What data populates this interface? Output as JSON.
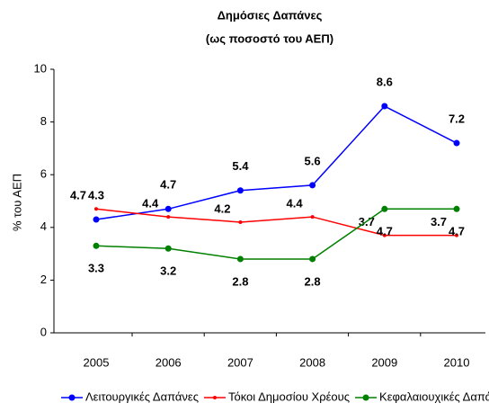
{
  "chart_data": {
    "type": "line",
    "title": "Δημόσιες Δαπάνες",
    "subtitle": "(ως ποσοστό του ΑΕΠ)",
    "y_label": "% του ΑΕΠ",
    "categories": [
      "2005",
      "2006",
      "2007",
      "2008",
      "2009",
      "2010"
    ],
    "series": [
      {
        "name": "Λειτουργικές Δαπάνες",
        "color": "#0000ff",
        "values": [
          4.3,
          4.7,
          5.4,
          5.6,
          8.6,
          7.2
        ]
      },
      {
        "name": "Τόκοι Δημοσίου Χρέους",
        "color": "#ff0000",
        "values": [
          4.7,
          4.4,
          4.2,
          4.4,
          3.7,
          3.7
        ]
      },
      {
        "name": "Κεφαλαιουχικές Δαπάνες",
        "color": "#008000",
        "values": [
          3.3,
          3.2,
          2.8,
          2.8,
          4.7,
          4.7
        ]
      }
    ],
    "ylim": [
      0,
      10
    ],
    "yticks": [
      0,
      2,
      4,
      6,
      8,
      10
    ],
    "grid": false,
    "legend": "bottom"
  }
}
